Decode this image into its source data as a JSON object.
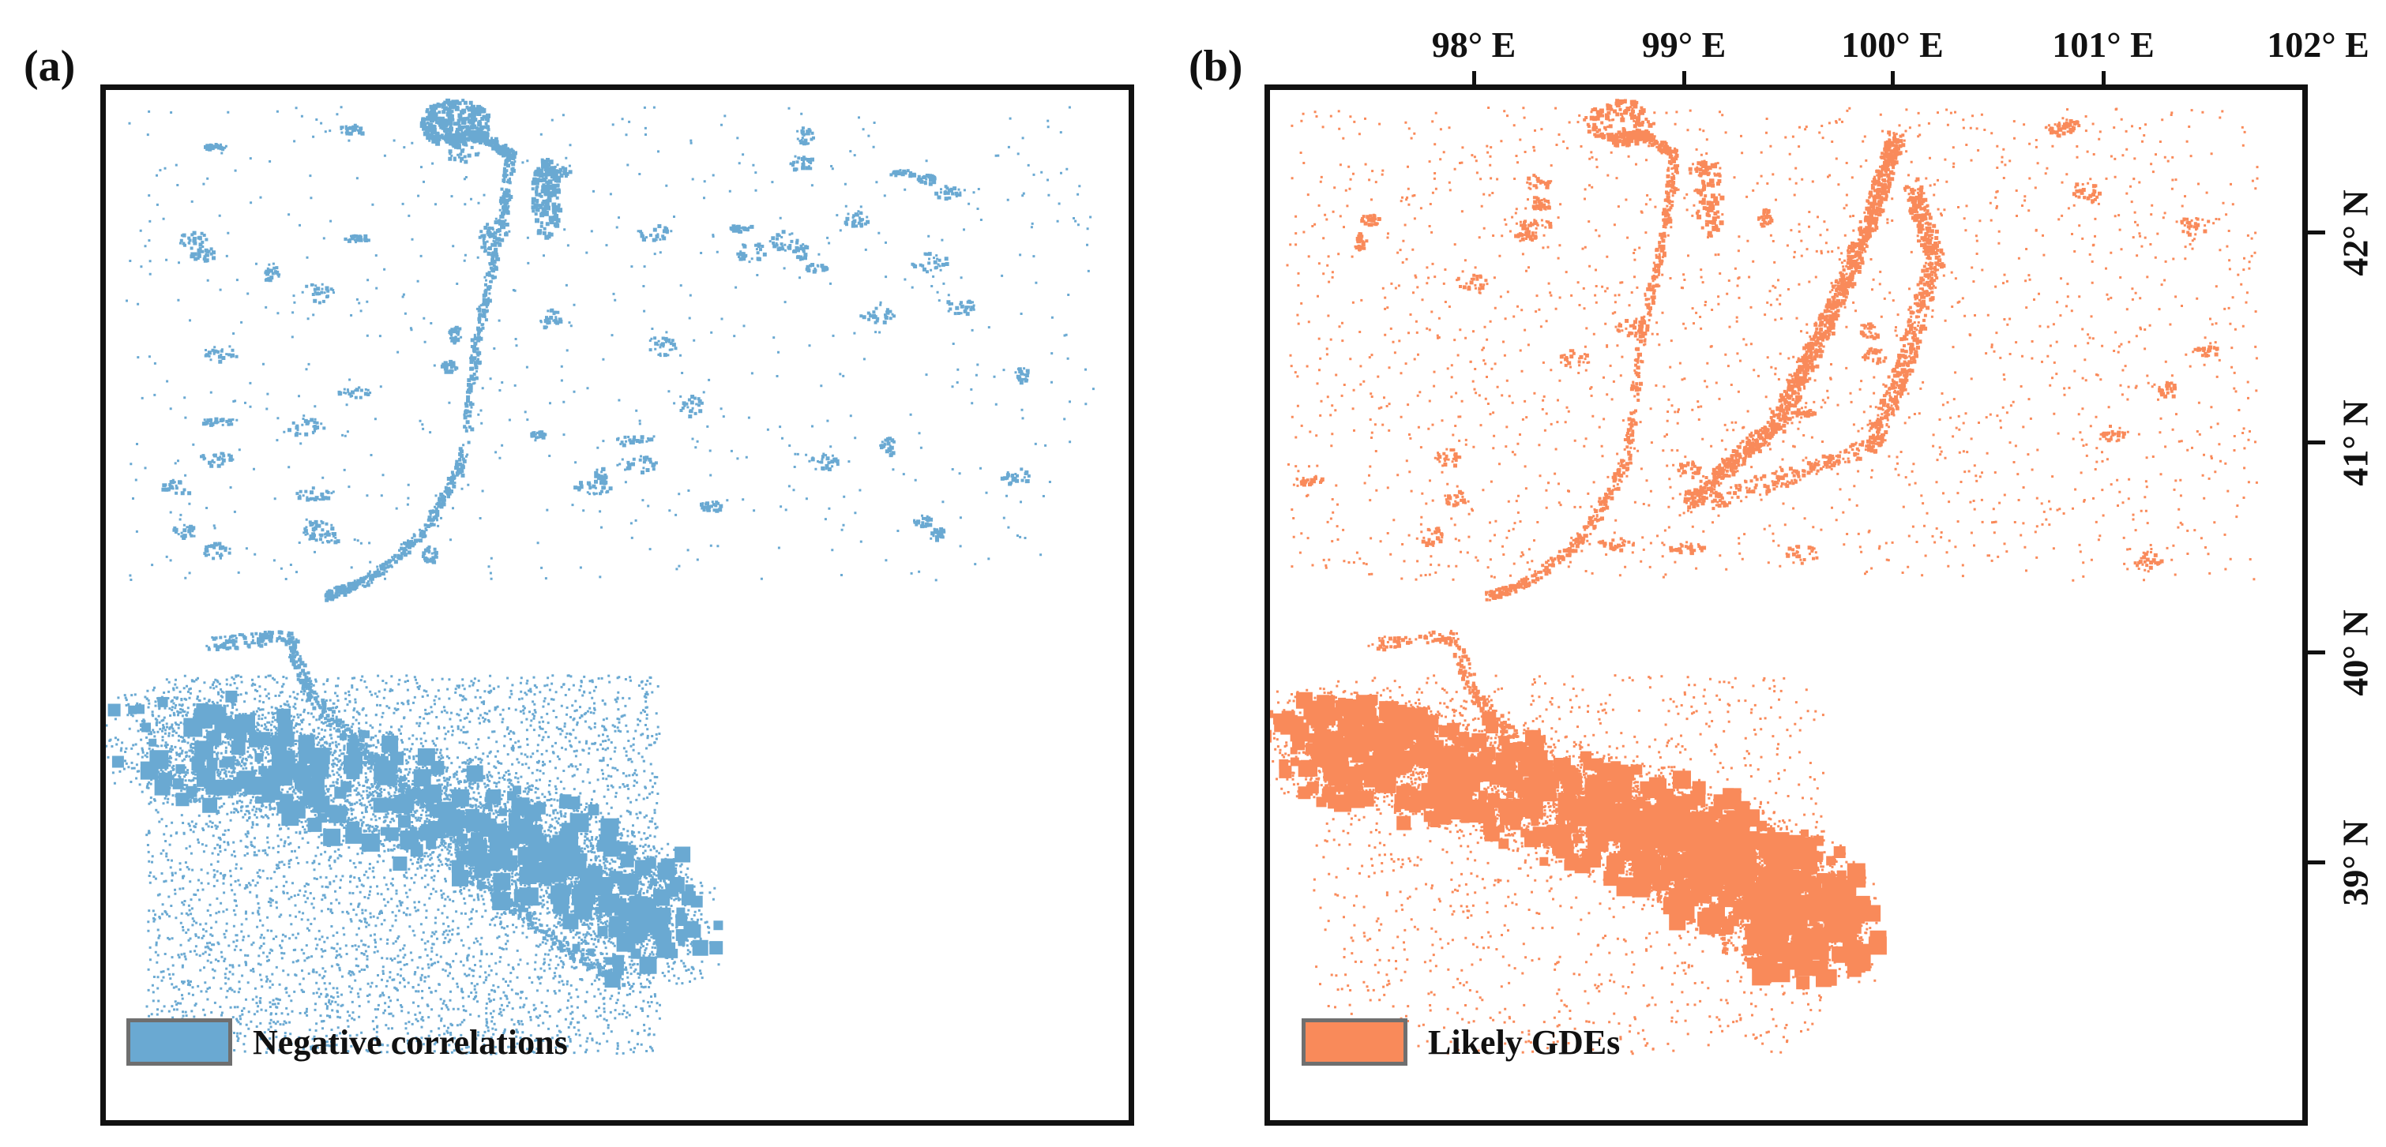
{
  "panels": [
    {
      "id": "a",
      "label": "(a)",
      "legend_label": "Negative correlations",
      "color": "#6aa9d2"
    },
    {
      "id": "b",
      "label": "(b)",
      "legend_label": "Likely GDEs",
      "color": "#f98a5a"
    }
  ],
  "axes": {
    "longitude_ticks": [
      "98° E",
      "99° E",
      "100° E",
      "101° E",
      "102° E"
    ],
    "latitude_ticks": [
      "42° N",
      "41° N",
      "40° N",
      "39° N"
    ]
  },
  "colors": {
    "frame": "#111111",
    "legend_border": "#6f6f6f"
  }
}
